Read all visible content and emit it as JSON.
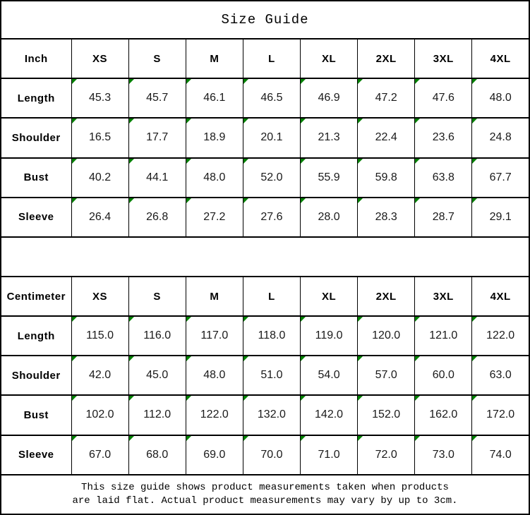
{
  "title": "Size Guide",
  "sizes": [
    "XS",
    "S",
    "M",
    "L",
    "XL",
    "2XL",
    "3XL",
    "4XL"
  ],
  "tables": [
    {
      "unit_label": "Inch",
      "rows": [
        {
          "label": "Length",
          "values": [
            "45.3",
            "45.7",
            "46.1",
            "46.5",
            "46.9",
            "47.2",
            "47.6",
            "48.0"
          ]
        },
        {
          "label": "Shoulder",
          "values": [
            "16.5",
            "17.7",
            "18.9",
            "20.1",
            "21.3",
            "22.4",
            "23.6",
            "24.8"
          ]
        },
        {
          "label": "Bust",
          "values": [
            "40.2",
            "44.1",
            "48.0",
            "52.0",
            "55.9",
            "59.8",
            "63.8",
            "67.7"
          ]
        },
        {
          "label": "Sleeve",
          "values": [
            "26.4",
            "26.8",
            "27.2",
            "27.6",
            "28.0",
            "28.3",
            "28.7",
            "29.1"
          ]
        }
      ]
    },
    {
      "unit_label": "Centimeter",
      "rows": [
        {
          "label": "Length",
          "values": [
            "115.0",
            "116.0",
            "117.0",
            "118.0",
            "119.0",
            "120.0",
            "121.0",
            "122.0"
          ]
        },
        {
          "label": "Shoulder",
          "values": [
            "42.0",
            "45.0",
            "48.0",
            "51.0",
            "54.0",
            "57.0",
            "60.0",
            "63.0"
          ]
        },
        {
          "label": "Bust",
          "values": [
            "102.0",
            "112.0",
            "122.0",
            "132.0",
            "142.0",
            "152.0",
            "162.0",
            "172.0"
          ]
        },
        {
          "label": "Sleeve",
          "values": [
            "67.0",
            "68.0",
            "69.0",
            "70.0",
            "71.0",
            "72.0",
            "73.0",
            "74.0"
          ]
        }
      ]
    }
  ],
  "footer": {
    "lines": [
      "This size guide shows product measurements taken when products",
      "are laid flat. Actual product measurements may vary by up to 3cm."
    ]
  },
  "icons": {
    "cell_marker": "stored-as-text-triangle"
  },
  "colors": {
    "border": "#000000",
    "text": "#1a1a1a",
    "background": "#ffffff",
    "cell_marker_green": "#008000"
  },
  "chart_data": [
    {
      "type": "table",
      "title": "Size Guide (Inch)",
      "columns": [
        "Inch",
        "XS",
        "S",
        "M",
        "L",
        "XL",
        "2XL",
        "3XL",
        "4XL"
      ],
      "rows": [
        [
          "Length",
          45.3,
          45.7,
          46.1,
          46.5,
          46.9,
          47.2,
          47.6,
          48.0
        ],
        [
          "Shoulder",
          16.5,
          17.7,
          18.9,
          20.1,
          21.3,
          22.4,
          23.6,
          24.8
        ],
        [
          "Bust",
          40.2,
          44.1,
          48.0,
          52.0,
          55.9,
          59.8,
          63.8,
          67.7
        ],
        [
          "Sleeve",
          26.4,
          26.8,
          27.2,
          27.6,
          28.0,
          28.3,
          28.7,
          29.1
        ]
      ]
    },
    {
      "type": "table",
      "title": "Size Guide (Centimeter)",
      "columns": [
        "Centimeter",
        "XS",
        "S",
        "M",
        "L",
        "XL",
        "2XL",
        "3XL",
        "4XL"
      ],
      "rows": [
        [
          "Length",
          115.0,
          116.0,
          117.0,
          118.0,
          119.0,
          120.0,
          121.0,
          122.0
        ],
        [
          "Shoulder",
          42.0,
          45.0,
          48.0,
          51.0,
          54.0,
          57.0,
          60.0,
          63.0
        ],
        [
          "Bust",
          102.0,
          112.0,
          122.0,
          132.0,
          142.0,
          152.0,
          162.0,
          172.0
        ],
        [
          "Sleeve",
          67.0,
          68.0,
          69.0,
          70.0,
          71.0,
          72.0,
          73.0,
          74.0
        ]
      ]
    }
  ]
}
